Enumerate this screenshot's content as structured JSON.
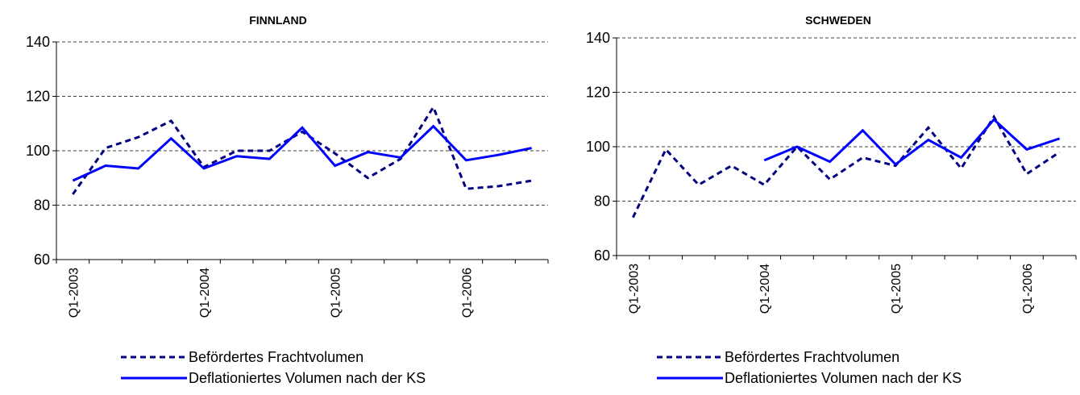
{
  "chart_data": [
    {
      "type": "line",
      "title": "FINNLAND",
      "categories": [
        "Q1-2003",
        null,
        null,
        null,
        "Q1-2004",
        null,
        null,
        null,
        "Q1-2005",
        null,
        null,
        null,
        "Q1-2006",
        null,
        null
      ],
      "series": [
        {
          "name": "Befördertes Frachtvolumen",
          "color": "#000080",
          "dash": true,
          "values": [
            84,
            101,
            105,
            111,
            94,
            100,
            100,
            107,
            99,
            90,
            97,
            116,
            86,
            87,
            89
          ]
        },
        {
          "name": "Deflationiertes Volumen nach der KS",
          "color": "#0000ff",
          "dash": false,
          "values": [
            89,
            94.5,
            93.5,
            104.5,
            93.5,
            98,
            97,
            108.5,
            94.5,
            99.5,
            97.5,
            109,
            96.5,
            98.5,
            101
          ]
        }
      ],
      "ylim": [
        60,
        140
      ],
      "yticks": [
        60,
        80,
        100,
        120,
        140
      ],
      "grid": true
    },
    {
      "type": "line",
      "title": "SCHWEDEN",
      "categories": [
        "Q1-2003",
        null,
        null,
        null,
        "Q1-2004",
        null,
        null,
        null,
        "Q1-2005",
        null,
        null,
        null,
        "Q1-2006",
        null
      ],
      "series": [
        {
          "name": "Befördertes Frachtvolumen",
          "color": "#000080",
          "dash": true,
          "values": [
            74,
            99,
            86,
            93,
            86,
            100,
            88,
            96,
            93,
            107,
            92,
            111,
            90,
            98
          ]
        },
        {
          "name": "Deflationiertes Volumen nach der KS",
          "color": "#0000ff",
          "dash": false,
          "values": [
            null,
            null,
            null,
            null,
            95,
            100,
            94.5,
            106,
            93.5,
            102.5,
            96,
            110,
            99,
            103
          ]
        }
      ],
      "ylim": [
        60,
        140
      ],
      "yticks": [
        60,
        80,
        100,
        120,
        140
      ],
      "grid": true
    }
  ]
}
